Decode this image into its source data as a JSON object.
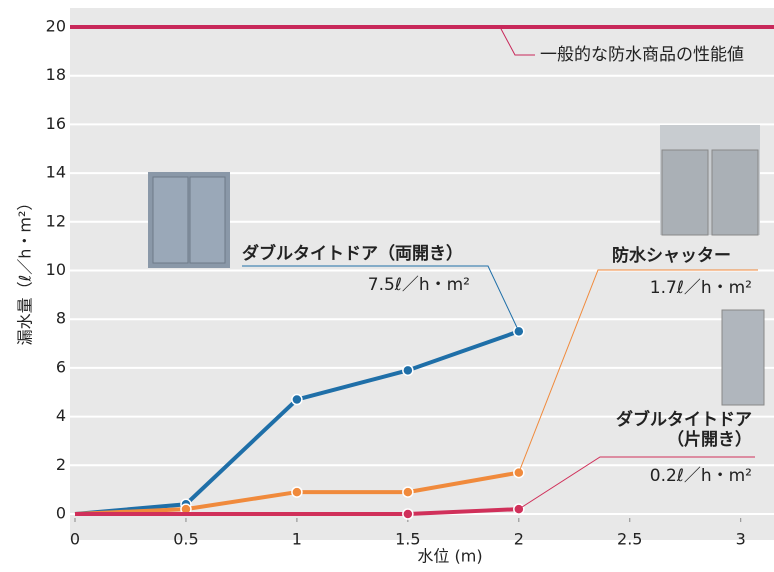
{
  "chart_data": {
    "type": "line",
    "y_label": "漏水量（ℓ／h・m²）",
    "x_label": "水位 (m)",
    "xlim": [
      0,
      3.15
    ],
    "ylim": [
      0,
      20
    ],
    "xticks": [
      0,
      0.5,
      1,
      1.5,
      2,
      2.5,
      3
    ],
    "yticks": [
      0,
      2,
      4,
      6,
      8,
      10,
      12,
      14,
      16,
      18,
      20
    ],
    "grid": true,
    "reference_line": {
      "value": 20,
      "label": "一般的な防水商品の性能値",
      "color": "#c8285a"
    },
    "series": [
      {
        "name": "ダブルタイトドア（両開き）",
        "color": "#1f6fa8",
        "x": [
          0,
          0.5,
          1,
          1.5,
          2
        ],
        "values": [
          0,
          0.4,
          4.7,
          5.9,
          7.5
        ],
        "value_labels": [
          null,
          null,
          null,
          null,
          "7.5ℓ／h・m²"
        ]
      },
      {
        "name": "防水シャッター",
        "color": "#f08a3c",
        "x": [
          0,
          0.5,
          1,
          1.5,
          2
        ],
        "values": [
          0,
          0.2,
          0.9,
          0.9,
          1.7
        ],
        "value_labels": [
          null,
          null,
          null,
          null,
          "1.7ℓ／h・m²"
        ]
      },
      {
        "name": "ダブルタイトドア（片開き）",
        "color": "#d0305a",
        "x": [
          0,
          1.5,
          2
        ],
        "values": [
          0,
          0,
          0.2
        ],
        "value_labels": [
          null,
          null,
          "0.2ℓ／h・m²"
        ]
      }
    ]
  }
}
